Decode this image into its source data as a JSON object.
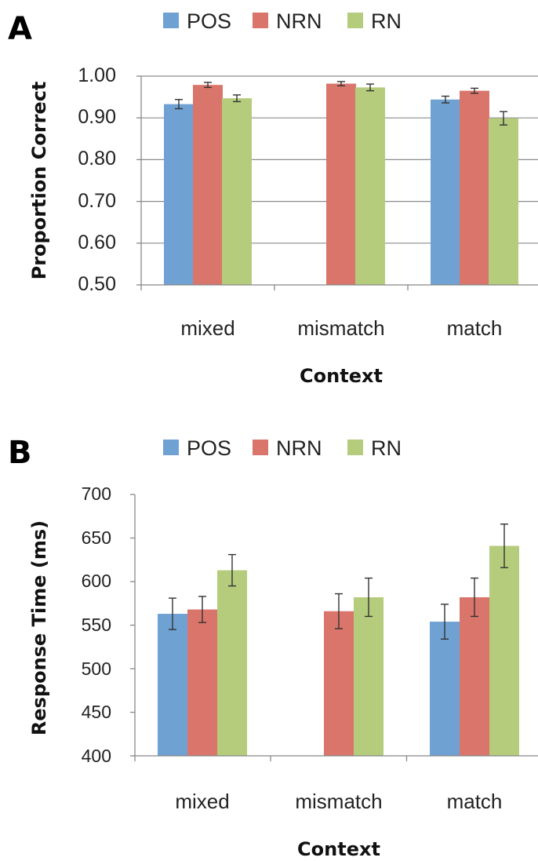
{
  "chart_data": [
    {
      "panel": "A",
      "type": "bar",
      "categories": [
        "mixed",
        "mismatch",
        "match"
      ],
      "series": [
        {
          "name": "POS",
          "color": "#6fa1d3",
          "values": [
            0.933,
            null,
            0.944
          ],
          "errors": [
            0.011,
            null,
            0.008
          ]
        },
        {
          "name": "NRN",
          "color": "#d9756b",
          "values": [
            0.979,
            0.982,
            0.965
          ],
          "errors": [
            0.006,
            0.005,
            0.006
          ]
        },
        {
          "name": "RN",
          "color": "#b4cc7c",
          "values": [
            0.947,
            0.973,
            0.899
          ],
          "errors": [
            0.008,
            0.008,
            0.016
          ]
        }
      ],
      "xlabel": "Context",
      "ylabel": "Proportion Correct",
      "ylim": [
        0.5,
        1.0
      ],
      "yticks": [
        "0.50",
        "0.60",
        "0.70",
        "0.80",
        "0.90",
        "1.00"
      ],
      "grid": true,
      "legend": "top"
    },
    {
      "panel": "B",
      "type": "bar",
      "categories": [
        "mixed",
        "mismatch",
        "match"
      ],
      "series": [
        {
          "name": "POS",
          "color": "#6fa1d3",
          "values": [
            563,
            null,
            554
          ],
          "errors": [
            18,
            null,
            20
          ]
        },
        {
          "name": "NRN",
          "color": "#d9756b",
          "values": [
            568,
            566,
            582
          ],
          "errors": [
            15,
            20,
            22
          ]
        },
        {
          "name": "RN",
          "color": "#b4cc7c",
          "values": [
            613,
            582,
            641
          ],
          "errors": [
            18,
            22,
            25
          ]
        }
      ],
      "xlabel": "Context",
      "ylabel": "Response Time (ms)",
      "ylim": [
        400,
        700
      ],
      "yticks": [
        "400",
        "450",
        "500",
        "550",
        "600",
        "650",
        "700"
      ],
      "grid": false,
      "legend": "top"
    }
  ]
}
